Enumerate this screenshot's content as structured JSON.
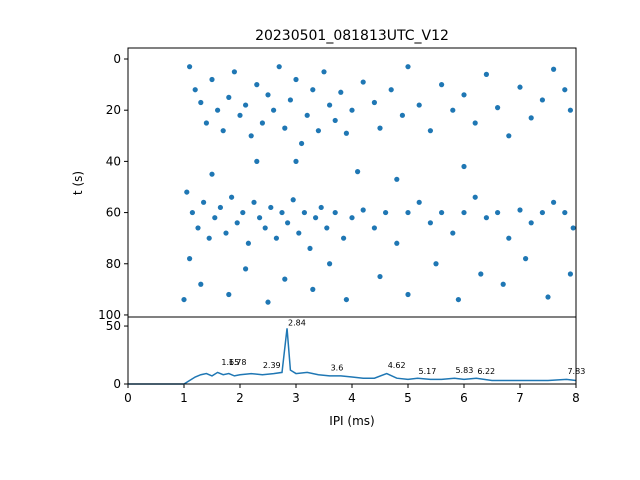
{
  "chart_data": [
    {
      "type": "scatter",
      "title": "20230501_081813UTC_V12",
      "y_label": "t (s)",
      "color": "#1f77b4",
      "y_inverted": true,
      "xlim": [
        0,
        8
      ],
      "ylim": [
        -4.3,
        100.8
      ],
      "yticks": [
        0,
        20,
        40,
        60,
        80,
        100
      ],
      "x": [
        1.1,
        1.2,
        1.3,
        1.4,
        1.5,
        1.6,
        1.7,
        1.8,
        1.9,
        2.0,
        2.1,
        2.2,
        2.3,
        2.4,
        2.5,
        2.6,
        2.7,
        2.8,
        2.9,
        3.0,
        3.1,
        3.2,
        3.3,
        3.4,
        3.5,
        3.6,
        3.7,
        3.8,
        3.9,
        4.0,
        4.2,
        4.4,
        4.5,
        4.7,
        4.9,
        5.0,
        5.2,
        5.4,
        5.6,
        5.8,
        6.0,
        6.2,
        6.4,
        6.6,
        6.8,
        7.0,
        7.2,
        7.4,
        7.6,
        7.8,
        7.9,
        1.05,
        1.15,
        1.25,
        1.35,
        1.45,
        1.55,
        1.65,
        1.75,
        1.85,
        1.95,
        2.05,
        2.15,
        2.25,
        2.35,
        2.45,
        2.55,
        2.65,
        2.75,
        2.85,
        2.95,
        3.05,
        3.15,
        3.25,
        3.35,
        3.45,
        3.55,
        3.7,
        3.85,
        4.0,
        4.2,
        4.4,
        4.6,
        4.8,
        5.0,
        5.2,
        5.4,
        5.6,
        5.8,
        6.0,
        6.2,
        6.4,
        6.6,
        6.8,
        7.0,
        7.2,
        7.4,
        7.6,
        7.8,
        7.95,
        1.1,
        1.3,
        1.5,
        1.8,
        2.1,
        2.5,
        2.8,
        3.0,
        3.3,
        3.6,
        3.9,
        4.1,
        4.5,
        5.0,
        5.5,
        5.9,
        6.3,
        6.7,
        7.1,
        7.5,
        7.9,
        1.0,
        2.3,
        4.8,
        6.0
      ],
      "values": [
        3,
        12,
        17,
        25,
        8,
        20,
        28,
        15,
        5,
        22,
        18,
        30,
        10,
        25,
        14,
        20,
        3,
        27,
        16,
        8,
        33,
        22,
        12,
        28,
        5,
        18,
        24,
        13,
        29,
        20,
        9,
        17,
        27,
        12,
        22,
        3,
        18,
        28,
        10,
        20,
        14,
        25,
        6,
        19,
        30,
        11,
        23,
        16,
        4,
        12,
        20,
        52,
        60,
        66,
        56,
        70,
        62,
        58,
        68,
        54,
        64,
        60,
        72,
        56,
        62,
        66,
        58,
        70,
        60,
        64,
        55,
        68,
        60,
        74,
        62,
        58,
        66,
        60,
        70,
        62,
        59,
        66,
        60,
        72,
        60,
        56,
        64,
        60,
        68,
        60,
        54,
        62,
        60,
        70,
        59,
        64,
        60,
        56,
        60,
        66,
        78,
        88,
        45,
        92,
        82,
        95,
        86,
        40,
        90,
        80,
        94,
        44,
        85,
        92,
        80,
        94,
        84,
        88,
        78,
        93,
        84,
        94,
        40,
        47,
        42
      ]
    },
    {
      "type": "line",
      "x_label": "IPI (ms)",
      "color": "#1f77b4",
      "xlim": [
        0,
        8
      ],
      "ylim": [
        0,
        57.8
      ],
      "xticks": [
        0,
        1,
        2,
        3,
        4,
        5,
        6,
        7,
        8
      ],
      "yticks": [
        0,
        50
      ],
      "x": [
        0,
        0.5,
        1.0,
        1.1,
        1.2,
        1.3,
        1.4,
        1.5,
        1.6,
        1.7,
        1.8,
        1.9,
        2.0,
        2.2,
        2.4,
        2.6,
        2.75,
        2.84,
        2.9,
        3.0,
        3.2,
        3.4,
        3.6,
        3.8,
        4.0,
        4.2,
        4.4,
        4.62,
        4.8,
        5.0,
        5.17,
        5.4,
        5.6,
        5.83,
        6.0,
        6.22,
        6.5,
        7.0,
        7.5,
        7.83,
        8.0
      ],
      "values": [
        0,
        0,
        0,
        3,
        6,
        8,
        9,
        7,
        10,
        8,
        9,
        7,
        8,
        9,
        8,
        9,
        10,
        48,
        12,
        9,
        10,
        8,
        7,
        7,
        6,
        5,
        5,
        9,
        5,
        4,
        5,
        4,
        4,
        5,
        4,
        5,
        3,
        3,
        3,
        4,
        3
      ],
      "annotations": [
        {
          "label": "1.65",
          "x": 1.65,
          "y": 14
        },
        {
          "label": "1.78",
          "x": 1.78,
          "y": 14
        },
        {
          "label": "2.39",
          "x": 2.39,
          "y": 11
        },
        {
          "label": "2.84",
          "x": 2.84,
          "y": 48
        },
        {
          "label": "3.6",
          "x": 3.6,
          "y": 9
        },
        {
          "label": "4.62",
          "x": 4.62,
          "y": 11
        },
        {
          "label": "5.17",
          "x": 5.17,
          "y": 6
        },
        {
          "label": "5.83",
          "x": 5.83,
          "y": 7
        },
        {
          "label": "6.22",
          "x": 6.22,
          "y": 6
        },
        {
          "label": "7.83",
          "x": 7.83,
          "y": 6
        }
      ]
    }
  ]
}
